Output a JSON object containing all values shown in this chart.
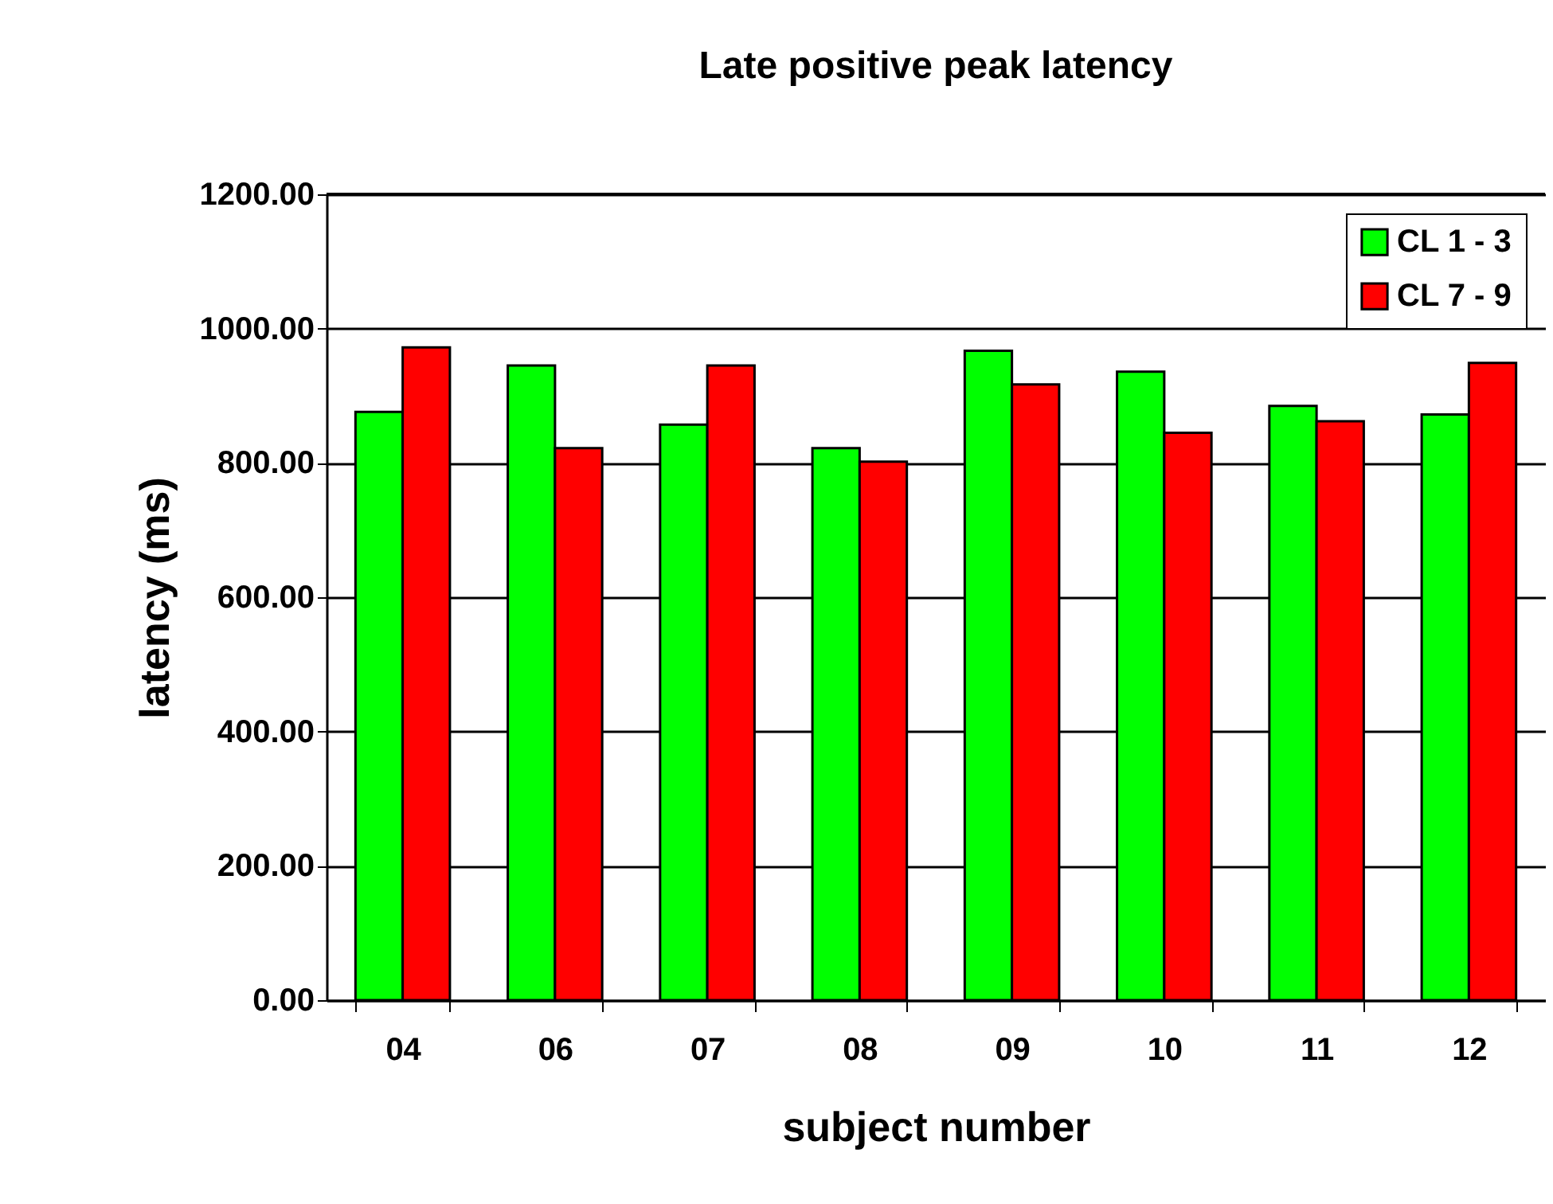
{
  "chart_data": {
    "type": "bar",
    "title": "Late positive peak latency",
    "xlabel": "subject number",
    "ylabel": "latency (ms)",
    "categories": [
      "04",
      "06",
      "07",
      "08",
      "09",
      "10",
      "11",
      "12"
    ],
    "series": [
      {
        "name": "CL 1 - 3",
        "color": "#00ff00",
        "values": [
          876,
          945,
          857,
          822,
          967,
          936,
          885,
          872
        ]
      },
      {
        "name": "CL 7 - 9",
        "color": "#ff0000",
        "values": [
          972,
          822,
          945,
          802,
          917,
          845,
          862,
          949
        ]
      }
    ],
    "ylim": [
      0,
      1200
    ],
    "yticks": [
      {
        "value": 0,
        "label": "0.00"
      },
      {
        "value": 200,
        "label": "200.00"
      },
      {
        "value": 400,
        "label": "400.00"
      },
      {
        "value": 600,
        "label": "600.00"
      },
      {
        "value": 800,
        "label": "800.00"
      },
      {
        "value": 1000,
        "label": "1000.00"
      },
      {
        "value": 1200,
        "label": "1200.00"
      }
    ],
    "grid": "y",
    "legend": "top right"
  }
}
